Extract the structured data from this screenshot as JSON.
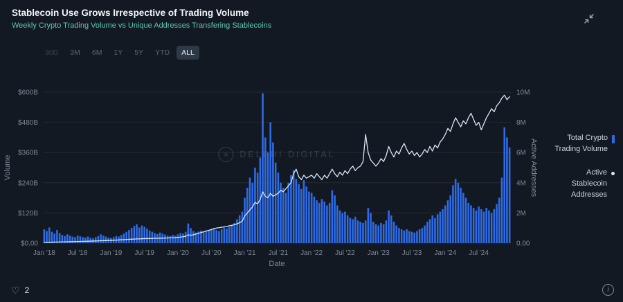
{
  "header": {
    "title": "Stablecoin Use Grows Irrespective of Trading Volume",
    "subtitle": "Weekly Crypto Trading Volume vs Unique Addresses Transfering Stablecoins"
  },
  "controls": {
    "ranges": [
      {
        "label": "30D",
        "state": "disabled"
      },
      {
        "label": "3M",
        "state": ""
      },
      {
        "label": "6M",
        "state": ""
      },
      {
        "label": "1Y",
        "state": ""
      },
      {
        "label": "5Y",
        "state": ""
      },
      {
        "label": "YTD",
        "state": ""
      },
      {
        "label": "ALL",
        "state": "active"
      }
    ]
  },
  "legend": {
    "items": [
      {
        "label": "Total Crypto Trading Volume",
        "type": "bar",
        "marker_color": "#2e6be6"
      },
      {
        "label": "Active Stablecoin Addresses",
        "type": "line",
        "marker_color": "#d7e7f6"
      }
    ]
  },
  "watermark": {
    "text": "DELPHI DIGITAL",
    "logo_glyph": "✳"
  },
  "footer": {
    "likes": "2",
    "heart_glyph": "♡",
    "info_glyph": "i"
  },
  "colors": {
    "background": "#131923",
    "bar": "#2e6be6",
    "line": "#d7e7f6",
    "accent_teal": "#5ec9a8",
    "grid": "rgba(255,255,255,0.07)",
    "tick": "#7e8893"
  },
  "chart_data": {
    "type": "bar+line",
    "title": "Weekly Crypto Trading Volume vs Unique Addresses Transfering Stablecoins",
    "xlabel": "Date",
    "ylabel_left": "Volume",
    "ylabel_right": "Active Addresses",
    "y_left_ticks": [
      "$0.00",
      "$120B",
      "$240B",
      "$360B",
      "$480B",
      "$600B"
    ],
    "y_right_ticks": [
      "0.00",
      "2M",
      "4M",
      "6M",
      "8M",
      "10M"
    ],
    "y_left_max": 600,
    "y_right_max": 10,
    "grid": true,
    "legend_position": "right",
    "x_tick_labels": [
      "Jan '18",
      "Jul '18",
      "Jan '19",
      "Jul '19",
      "Jan '20",
      "Jul '20",
      "Jan '21",
      "Jul '21",
      "Jan '22",
      "Jul '22",
      "Jan '23",
      "Jul '23",
      "Jan '24",
      "Jul '24"
    ],
    "x_tick_positions": [
      0,
      13,
      26,
      39,
      52,
      65,
      78,
      91,
      104,
      117,
      130,
      143,
      156,
      169
    ],
    "x_start": "Jan 2018",
    "x_end": "Dec 2024",
    "sampling": "biweekly estimates read from chart",
    "series": [
      {
        "name": "Total Crypto Trading Volume",
        "type": "bar",
        "unit": "$B",
        "values": [
          55,
          48,
          62,
          45,
          38,
          52,
          40,
          33,
          28,
          35,
          30,
          26,
          24,
          30,
          27,
          24,
          22,
          26,
          21,
          19,
          24,
          28,
          35,
          30,
          26,
          22,
          20,
          24,
          28,
          26,
          32,
          38,
          45,
          52,
          60,
          68,
          75,
          62,
          70,
          65,
          58,
          50,
          45,
          40,
          36,
          42,
          38,
          34,
          30,
          28,
          33,
          29,
          35,
          40,
          38,
          45,
          78,
          60,
          48,
          42,
          46,
          50,
          44,
          48,
          52,
          55,
          60,
          52,
          48,
          55,
          62,
          58,
          65,
          72,
          80,
          95,
          110,
          125,
          180,
          220,
          260,
          240,
          300,
          280,
          340,
          595,
          420,
          360,
          480,
          400,
          320,
          280,
          240,
          220,
          200,
          240,
          270,
          290,
          255,
          235,
          215,
          250,
          225,
          205,
          200,
          185,
          170,
          160,
          175,
          165,
          150,
          160,
          210,
          190,
          150,
          130,
          120,
          125,
          110,
          100,
          95,
          105,
          90,
          85,
          80,
          90,
          140,
          120,
          85,
          75,
          70,
          80,
          75,
          90,
          130,
          110,
          85,
          70,
          60,
          55,
          50,
          55,
          48,
          45,
          42,
          48,
          55,
          60,
          70,
          85,
          95,
          110,
          100,
          115,
          125,
          135,
          150,
          170,
          190,
          230,
          255,
          240,
          220,
          200,
          180,
          160,
          150,
          140,
          130,
          145,
          135,
          125,
          140,
          130,
          120,
          135,
          155,
          180,
          260,
          460,
          420,
          380
        ]
      },
      {
        "name": "Active Stablecoin Addresses",
        "type": "line",
        "unit": "M",
        "values": [
          0.05,
          0.05,
          0.06,
          0.06,
          0.07,
          0.07,
          0.08,
          0.08,
          0.08,
          0.09,
          0.09,
          0.1,
          0.1,
          0.11,
          0.11,
          0.12,
          0.12,
          0.13,
          0.13,
          0.14,
          0.14,
          0.15,
          0.16,
          0.16,
          0.17,
          0.18,
          0.18,
          0.19,
          0.2,
          0.21,
          0.22,
          0.23,
          0.24,
          0.25,
          0.26,
          0.27,
          0.28,
          0.28,
          0.29,
          0.3,
          0.3,
          0.31,
          0.31,
          0.32,
          0.32,
          0.33,
          0.33,
          0.34,
          0.34,
          0.35,
          0.35,
          0.36,
          0.38,
          0.4,
          0.42,
          0.45,
          0.55,
          0.52,
          0.55,
          0.6,
          0.65,
          0.7,
          0.75,
          0.8,
          0.85,
          0.9,
          0.95,
          1.0,
          1.02,
          1.05,
          1.08,
          1.1,
          1.15,
          1.18,
          1.22,
          1.28,
          1.35,
          1.45,
          1.8,
          2.0,
          2.2,
          2.4,
          2.7,
          2.6,
          2.9,
          3.4,
          3.1,
          3.0,
          3.3,
          3.1,
          3.2,
          3.3,
          3.5,
          3.4,
          3.6,
          3.8,
          4.0,
          4.6,
          4.9,
          4.4,
          4.2,
          4.5,
          4.3,
          4.4,
          4.5,
          4.3,
          4.6,
          4.4,
          4.2,
          4.5,
          4.3,
          4.6,
          4.9,
          4.6,
          4.4,
          4.7,
          4.5,
          4.8,
          4.6,
          4.9,
          5.1,
          4.8,
          5.0,
          5.1,
          5.4,
          7.2,
          6.0,
          5.5,
          5.3,
          5.1,
          5.3,
          5.6,
          5.4,
          5.8,
          6.4,
          6.0,
          5.7,
          6.1,
          5.9,
          6.3,
          6.6,
          6.2,
          5.9,
          6.1,
          5.8,
          6.0,
          5.7,
          5.9,
          6.2,
          6.0,
          6.4,
          6.1,
          6.5,
          6.3,
          6.7,
          6.9,
          7.2,
          7.6,
          7.4,
          7.9,
          8.3,
          8.0,
          7.7,
          8.1,
          7.9,
          8.3,
          8.6,
          8.2,
          7.8,
          8.0,
          7.5,
          7.9,
          8.3,
          8.6,
          8.9,
          8.7,
          9.1,
          9.3,
          9.6,
          9.8,
          9.5,
          9.7
        ]
      }
    ]
  }
}
